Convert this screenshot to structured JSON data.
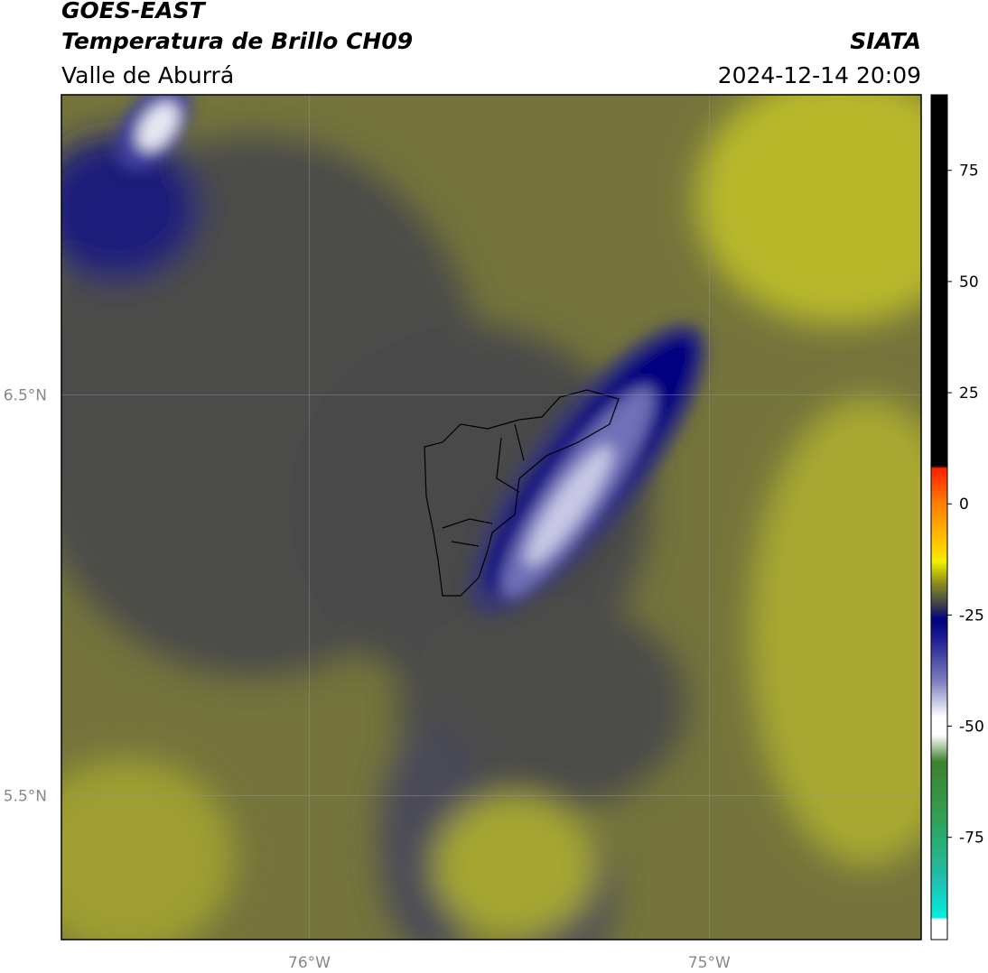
{
  "header": {
    "title": "GOES-EAST",
    "subtitle": "Temperatura de Brillo CH09",
    "region": "Valle de Aburrá",
    "source": "SIATA",
    "datetime": "2024-12-14 20:09"
  },
  "map": {
    "xlim": [
      -76.62,
      -74.47
    ],
    "ylim": [
      5.14,
      7.25
    ],
    "xticks": [
      {
        "value": -76,
        "label": "76°W"
      },
      {
        "value": -75,
        "label": "75°W"
      }
    ],
    "yticks": [
      {
        "value": 6.5,
        "label": "6.5°N"
      },
      {
        "value": 5.5,
        "label": "5.5°N"
      }
    ]
  },
  "colorbar": {
    "ylim": [
      -98,
      92
    ],
    "ticks": [
      75,
      50,
      25,
      0,
      -25,
      -50,
      -75
    ],
    "stops": [
      {
        "value": 92,
        "color": "#000000"
      },
      {
        "value": 8.5,
        "color": "#000000"
      },
      {
        "value": 8,
        "color": "#ff2000"
      },
      {
        "value": 0,
        "color": "#ff8000"
      },
      {
        "value": -10,
        "color": "#ffd000"
      },
      {
        "value": -13,
        "color": "#f0f000"
      },
      {
        "value": -18,
        "color": "#8a8a20"
      },
      {
        "value": -22,
        "color": "#4a4a48"
      },
      {
        "value": -26,
        "color": "#000080"
      },
      {
        "value": -30,
        "color": "#1a1a90"
      },
      {
        "value": -40,
        "color": "#8080c0"
      },
      {
        "value": -48,
        "color": "#ffffff"
      },
      {
        "value": -52,
        "color": "#ffffff"
      },
      {
        "value": -58,
        "color": "#408030"
      },
      {
        "value": -70,
        "color": "#30a050"
      },
      {
        "value": -85,
        "color": "#20c0b0"
      },
      {
        "value": -93,
        "color": "#00f0e0"
      },
      {
        "value": -93.5,
        "color": "#ffffff"
      },
      {
        "value": -98,
        "color": "#ffffff"
      }
    ]
  }
}
